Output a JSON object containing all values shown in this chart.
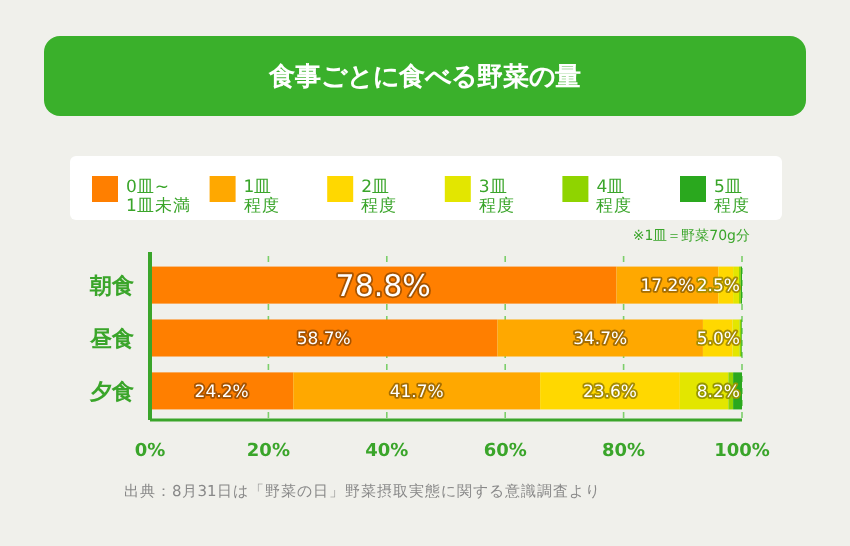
{
  "chart_data": {
    "type": "bar",
    "orientation": "horizontal",
    "stacked": true,
    "title": "食事ごとに食べる野菜の量",
    "categories": [
      "朝食",
      "昼食",
      "夕食"
    ],
    "series": [
      {
        "name": "0皿~1皿未満",
        "color": "#ff7f00",
        "values": [
          78.8,
          58.7,
          24.2
        ],
        "value_labels": [
          "78.8%",
          "58.7%",
          "24.2%"
        ]
      },
      {
        "name": "1皿程度",
        "color": "#ffa800",
        "values": [
          17.2,
          34.7,
          41.7
        ],
        "value_labels": [
          "17.2%",
          "34.7%",
          "41.7%"
        ]
      },
      {
        "name": "2皿程度",
        "color": "#ffd800",
        "values": [
          2.5,
          5.0,
          23.6
        ],
        "value_labels": [
          "2.5%",
          "5.0%",
          "23.6%"
        ]
      },
      {
        "name": "3皿程度",
        "color": "#e3e600",
        "values": [
          1.0,
          1.2,
          8.2
        ],
        "value_labels": [
          null,
          null,
          "8.2%"
        ]
      },
      {
        "name": "4皿程度",
        "color": "#8fd400",
        "values": [
          0.3,
          0.3,
          0.8
        ],
        "value_labels": [
          null,
          null,
          null
        ]
      },
      {
        "name": "5皿程度",
        "color": "#2aa81e",
        "values": [
          0.2,
          0.1,
          1.5
        ],
        "value_labels": [
          null,
          null,
          null
        ]
      }
    ],
    "xlim": [
      0,
      100
    ],
    "xticks": [
      {
        "value": 0,
        "label": "0%"
      },
      {
        "value": 20,
        "label": "20%"
      },
      {
        "value": 40,
        "label": "40%"
      },
      {
        "value": 60,
        "label": "60%"
      },
      {
        "value": 80,
        "label": "80%"
      },
      {
        "value": 100,
        "label": "100%"
      }
    ],
    "grid": "x",
    "legend": "top",
    "annotations": [
      "※1皿＝野菜70g分",
      "出典：8月31日は「野菜の日」野菜摂取実態に関する意識調査より"
    ]
  }
}
